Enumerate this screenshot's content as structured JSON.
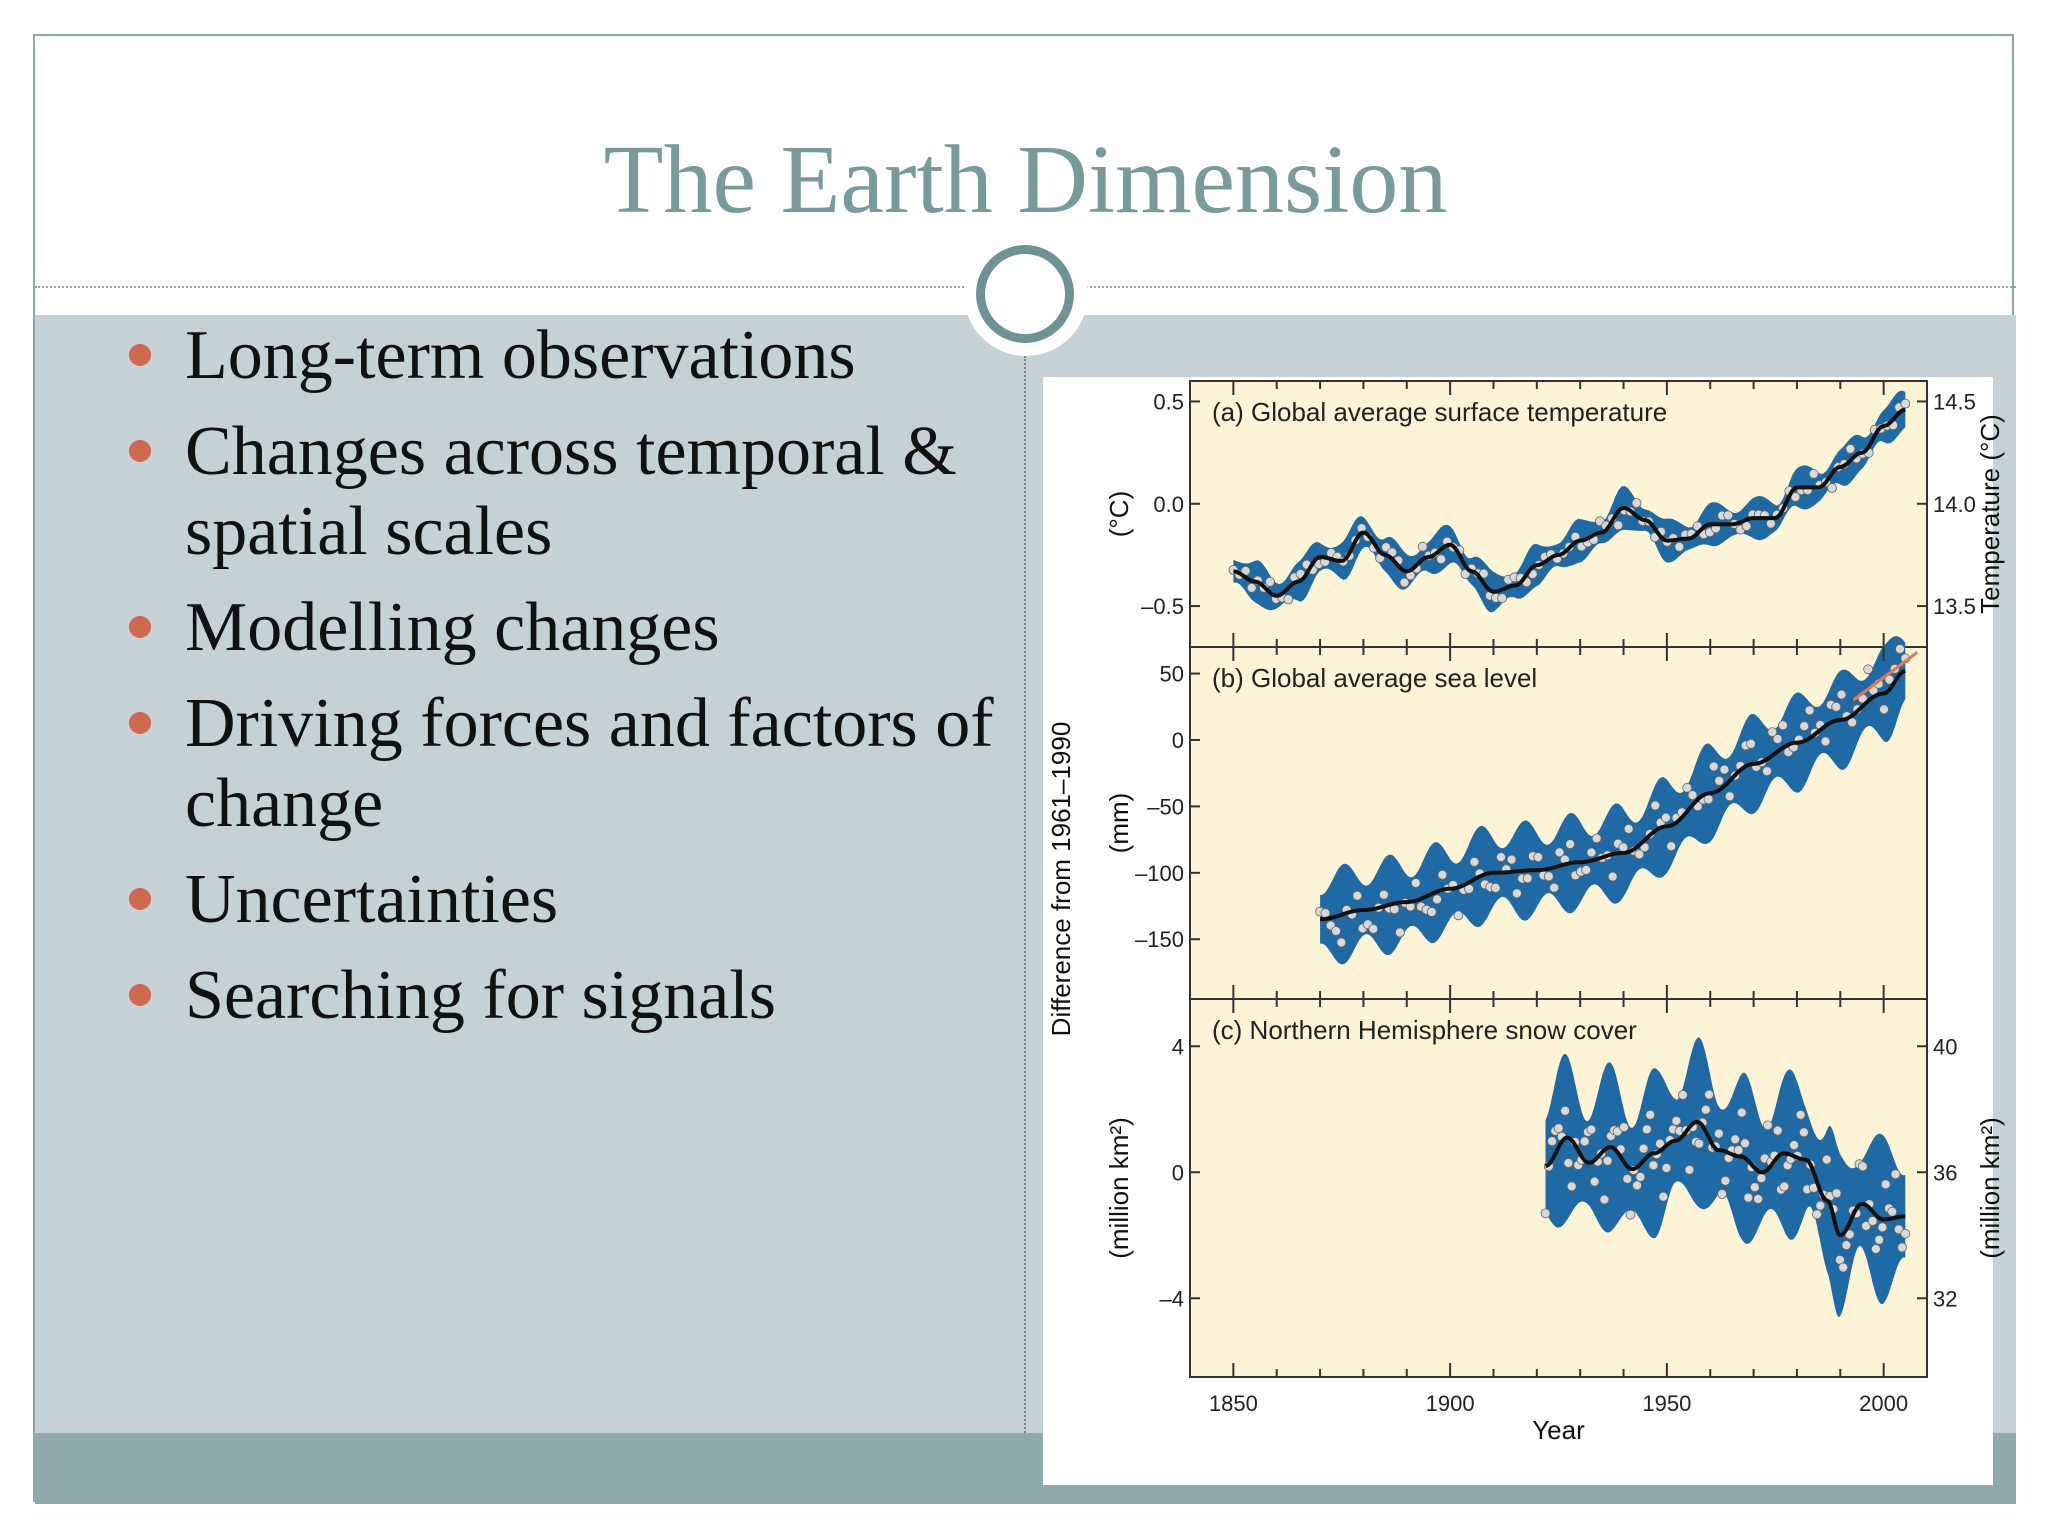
{
  "slide": {
    "title": "The Earth Dimension",
    "bullets": [
      "Long-term observations",
      "Changes across temporal & spatial scales",
      "Modelling changes",
      "Driving forces and factors of change",
      "Uncertainties",
      "Searching for signals"
    ]
  },
  "colors": {
    "title": "#789b9a",
    "bullet_dot": "#d0694f",
    "panel_bg": "#fdf3d6",
    "uncertainty_band": "#1f6aa5",
    "smoothed_line": "#111111",
    "data_points": "#d8d8d8",
    "recent_highlight": "#e07850"
  },
  "chart_data": [
    {
      "type": "line",
      "title": "(a) Global average surface temperature",
      "xlabel": "Year",
      "ylabel_left": "(°C)",
      "ylabel_right": "Temperature (°C)",
      "shared_ylabel": "Difference from 1961–1990",
      "xlim": [
        1840,
        2010
      ],
      "ylim": [
        -0.7,
        0.6
      ],
      "yticks_left": [
        0.5,
        0.0,
        -0.5
      ],
      "yticks_left_labels": [
        "0.5",
        "0.0",
        "–0.5"
      ],
      "yticks_right": [
        14.5,
        14.0,
        13.5
      ],
      "yticks_right_labels": [
        "14.5",
        "14.0",
        "13.5"
      ],
      "x": [
        1850,
        1855,
        1860,
        1865,
        1870,
        1875,
        1880,
        1885,
        1890,
        1895,
        1900,
        1905,
        1910,
        1915,
        1920,
        1925,
        1930,
        1935,
        1940,
        1945,
        1950,
        1955,
        1960,
        1965,
        1970,
        1975,
        1980,
        1985,
        1990,
        1995,
        2000,
        2005
      ],
      "smoothed": [
        -0.33,
        -0.38,
        -0.45,
        -0.38,
        -0.26,
        -0.28,
        -0.14,
        -0.25,
        -0.33,
        -0.26,
        -0.2,
        -0.33,
        -0.43,
        -0.4,
        -0.3,
        -0.25,
        -0.18,
        -0.14,
        -0.02,
        -0.08,
        -0.18,
        -0.17,
        -0.1,
        -0.1,
        -0.07,
        -0.07,
        0.08,
        0.08,
        0.18,
        0.25,
        0.38,
        0.46
      ],
      "band_half_width": 0.08
    },
    {
      "type": "line",
      "title": "(b) Global average sea level",
      "ylabel": "(mm)",
      "xlim": [
        1840,
        2010
      ],
      "ylim": [
        -195,
        70
      ],
      "yticks": [
        50,
        0,
        -50,
        -100,
        -150
      ],
      "yticks_labels": [
        "50",
        "0",
        "–50",
        "–100",
        "–150"
      ],
      "x": [
        1870,
        1880,
        1890,
        1900,
        1910,
        1920,
        1930,
        1940,
        1950,
        1960,
        1970,
        1980,
        1990,
        2000,
        2005
      ],
      "smoothed": [
        -135,
        -128,
        -122,
        -112,
        -100,
        -98,
        -92,
        -85,
        -65,
        -40,
        -18,
        -2,
        15,
        35,
        52
      ],
      "band_half_width": 28,
      "recent_satellite": {
        "x": [
          1993,
          2005
        ],
        "y": [
          30,
          60
        ]
      }
    },
    {
      "type": "line",
      "title": "(c) Northern Hemisphere snow cover",
      "ylabel_left": "(million km²)",
      "ylabel_right": "(million km²)",
      "xlim": [
        1840,
        2010
      ],
      "ylim": [
        -6.5,
        5.5
      ],
      "yticks_left": [
        4,
        0,
        -4
      ],
      "yticks_left_labels": [
        "4",
        "0",
        "–4"
      ],
      "yticks_right": [
        40,
        36,
        32
      ],
      "yticks_right_labels": [
        "40",
        "36",
        "32"
      ],
      "x": [
        1922,
        1927,
        1932,
        1937,
        1942,
        1947,
        1952,
        1957,
        1962,
        1967,
        1972,
        1977,
        1982,
        1987,
        1990,
        1995,
        2000,
        2005
      ],
      "smoothed": [
        0.2,
        1.1,
        0.3,
        0.8,
        0.1,
        0.6,
        1.0,
        1.6,
        0.7,
        0.5,
        0.0,
        0.6,
        0.4,
        -0.9,
        -2.0,
        -1.0,
        -1.5,
        -1.4
      ],
      "band_half_width": 2.0,
      "xlabel": "Year",
      "xticks": [
        1850,
        1900,
        1950,
        2000
      ],
      "xticks_labels": [
        "1850",
        "1900",
        "1950",
        "2000"
      ]
    }
  ]
}
